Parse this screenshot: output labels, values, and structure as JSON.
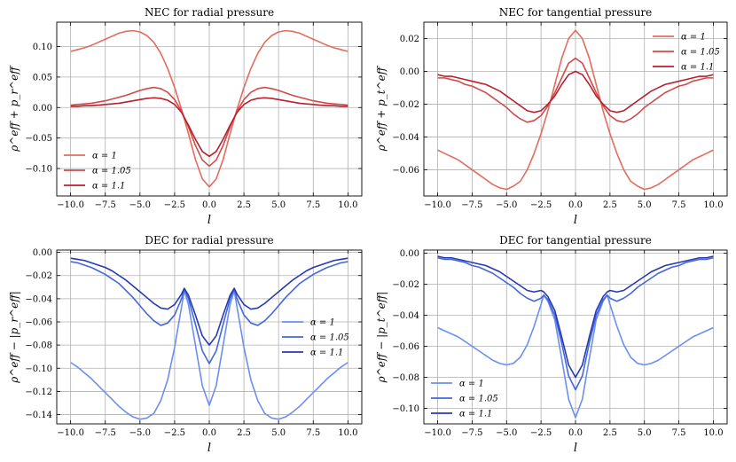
{
  "figure": {
    "charts": [
      {
        "id": "nec-radial",
        "title": "NEC for radial pressure",
        "xlabel": "l",
        "ylabel": "ρ^eff + p_r^eff",
        "legend_position": "lower-left"
      },
      {
        "id": "nec-tangential",
        "title": "NEC for tangential pressure",
        "xlabel": "l",
        "ylabel": "ρ^eff + p_t^eff",
        "legend_position": "upper-right"
      },
      {
        "id": "dec-radial",
        "title": "DEC for radial pressure",
        "xlabel": "l",
        "ylabel": "ρ^eff − |p_r^eff|",
        "legend_position": "center-right"
      },
      {
        "id": "dec-tangential",
        "title": "DEC for tangential pressure",
        "xlabel": "l",
        "ylabel": "ρ^eff − |p_t^eff|",
        "legend_position": "lower-left"
      }
    ]
  },
  "chart_data": [
    {
      "type": "line",
      "title": "NEC for radial pressure",
      "xlabel": "l",
      "ylabel": "ρ^eff + p_r^eff",
      "xlim": [
        -11,
        11
      ],
      "ylim": [
        -0.145,
        0.14
      ],
      "xticks": [
        -10,
        -7.5,
        -5,
        -2.5,
        0,
        2.5,
        5,
        7.5,
        10
      ],
      "xtick_labels": [
        "−10.0",
        "−7.5",
        "−5.0",
        "−2.5",
        "0.0",
        "2.5",
        "5.0",
        "7.5",
        "10.0"
      ],
      "yticks": [
        -0.1,
        -0.05,
        0.0,
        0.05,
        0.1
      ],
      "ytick_labels": [
        "−0.10",
        "−0.05",
        "0.00",
        "0.05",
        "0.10"
      ],
      "grid": true,
      "legend": "lower-left",
      "x": [
        0,
        0.5,
        1,
        1.5,
        2,
        2.5,
        3,
        3.5,
        4,
        4.5,
        5,
        5.5,
        6,
        6.5,
        7,
        7.5,
        8,
        8.5,
        9,
        9.5,
        10
      ],
      "symmetric_x": true,
      "series": [
        {
          "name": "α = 1",
          "color": "#e36c5d",
          "values": [
            -0.13,
            -0.117,
            -0.085,
            -0.043,
            -0.003,
            0.033,
            0.064,
            0.089,
            0.107,
            0.118,
            0.124,
            0.126,
            0.125,
            0.122,
            0.117,
            0.112,
            0.107,
            0.102,
            0.098,
            0.095,
            0.092
          ]
        },
        {
          "name": "α = 1.05",
          "color": "#cf4a4a",
          "values": [
            -0.096,
            -0.086,
            -0.062,
            -0.032,
            -0.006,
            0.013,
            0.025,
            0.031,
            0.033,
            0.031,
            0.028,
            0.024,
            0.02,
            0.017,
            0.014,
            0.011,
            0.009,
            0.007,
            0.006,
            0.005,
            0.004
          ]
        },
        {
          "name": "α = 1.1",
          "color": "#b8202e",
          "values": [
            -0.08,
            -0.072,
            -0.052,
            -0.029,
            -0.008,
            0.005,
            0.012,
            0.015,
            0.016,
            0.015,
            0.013,
            0.011,
            0.009,
            0.007,
            0.006,
            0.005,
            0.004,
            0.003,
            0.003,
            0.002,
            0.002
          ]
        }
      ]
    },
    {
      "type": "line",
      "title": "NEC for tangential pressure",
      "xlabel": "l",
      "ylabel": "ρ^eff + p_t^eff",
      "xlim": [
        -11,
        11
      ],
      "ylim": [
        -0.076,
        0.03
      ],
      "xticks": [
        -10,
        -7.5,
        -5,
        -2.5,
        0,
        2.5,
        5,
        7.5,
        10
      ],
      "xtick_labels": [
        "−10.0",
        "−7.5",
        "−5.0",
        "−2.5",
        "0.0",
        "2.5",
        "5.0",
        "7.5",
        "10.0"
      ],
      "yticks": [
        -0.06,
        -0.04,
        -0.02,
        0.0,
        0.02
      ],
      "ytick_labels": [
        "−0.06",
        "−0.04",
        "−0.02",
        "0.00",
        "0.02"
      ],
      "grid": true,
      "legend": "upper-right",
      "x": [
        0,
        0.5,
        1,
        1.5,
        2,
        2.5,
        3,
        3.5,
        4,
        4.5,
        5,
        5.5,
        6,
        6.5,
        7,
        7.5,
        8,
        8.5,
        9,
        9.5,
        10
      ],
      "symmetric_x": true,
      "series": [
        {
          "name": "α = 1",
          "color": "#e36c5d",
          "values": [
            0.025,
            0.02,
            0.008,
            -0.008,
            -0.024,
            -0.038,
            -0.05,
            -0.06,
            -0.067,
            -0.07,
            -0.072,
            -0.071,
            -0.069,
            -0.066,
            -0.063,
            -0.06,
            -0.057,
            -0.054,
            -0.052,
            -0.05,
            -0.048
          ]
        },
        {
          "name": "α = 1.05",
          "color": "#cf4a4a",
          "values": [
            0.008,
            0.005,
            -0.004,
            -0.013,
            -0.021,
            -0.027,
            -0.03,
            -0.031,
            -0.029,
            -0.026,
            -0.022,
            -0.019,
            -0.016,
            -0.013,
            -0.011,
            -0.009,
            -0.008,
            -0.006,
            -0.005,
            -0.004,
            -0.004
          ]
        },
        {
          "name": "α = 1.1",
          "color": "#b8202e",
          "values": [
            0.0,
            -0.002,
            -0.008,
            -0.015,
            -0.02,
            -0.024,
            -0.025,
            -0.024,
            -0.021,
            -0.018,
            -0.015,
            -0.012,
            -0.01,
            -0.008,
            -0.007,
            -0.006,
            -0.005,
            -0.004,
            -0.003,
            -0.003,
            -0.002
          ]
        }
      ]
    },
    {
      "type": "line",
      "title": "DEC for radial pressure",
      "xlabel": "l",
      "ylabel": "ρ^eff − |p_r^eff|",
      "xlim": [
        -11,
        11
      ],
      "ylim": [
        -0.148,
        0.002
      ],
      "xticks": [
        -10,
        -7.5,
        -5,
        -2.5,
        0,
        2.5,
        5,
        7.5,
        10
      ],
      "xtick_labels": [
        "−10.0",
        "−7.5",
        "−5.0",
        "−2.5",
        "0.0",
        "2.5",
        "5.0",
        "7.5",
        "10.0"
      ],
      "yticks": [
        0.0,
        -0.02,
        -0.04,
        -0.06,
        -0.08,
        -0.1,
        -0.12,
        -0.14
      ],
      "ytick_labels": [
        "0.00",
        "−0.02",
        "−0.04",
        "−0.06",
        "−0.08",
        "−0.10",
        "−0.12",
        "−0.14"
      ],
      "grid": true,
      "legend": "center-right",
      "x": [
        0,
        0.5,
        1,
        1.5,
        1.8,
        2,
        2.5,
        3,
        3.5,
        4,
        4.5,
        5,
        5.5,
        6,
        6.5,
        7,
        7.5,
        8,
        8.5,
        9,
        9.5,
        10
      ],
      "symmetric_x": true,
      "series": [
        {
          "name": "α = 1",
          "color": "#6b8ff0",
          "values": [
            -0.132,
            -0.115,
            -0.08,
            -0.045,
            -0.033,
            -0.047,
            -0.082,
            -0.11,
            -0.128,
            -0.139,
            -0.143,
            -0.144,
            -0.142,
            -0.138,
            -0.133,
            -0.127,
            -0.121,
            -0.115,
            -0.109,
            -0.104,
            -0.099,
            -0.095
          ]
        },
        {
          "name": "α = 1.05",
          "color": "#4566dd",
          "values": [
            -0.096,
            -0.085,
            -0.062,
            -0.04,
            -0.032,
            -0.04,
            -0.054,
            -0.061,
            -0.063,
            -0.059,
            -0.053,
            -0.046,
            -0.039,
            -0.033,
            -0.027,
            -0.023,
            -0.019,
            -0.016,
            -0.013,
            -0.011,
            -0.009,
            -0.008
          ]
        },
        {
          "name": "α = 1.1",
          "color": "#2639b5",
          "values": [
            -0.08,
            -0.072,
            -0.054,
            -0.037,
            -0.031,
            -0.036,
            -0.045,
            -0.049,
            -0.048,
            -0.044,
            -0.039,
            -0.034,
            -0.029,
            -0.024,
            -0.02,
            -0.016,
            -0.013,
            -0.011,
            -0.009,
            -0.007,
            -0.006,
            -0.005
          ]
        }
      ]
    },
    {
      "type": "line",
      "title": "DEC for tangential pressure",
      "xlabel": "l",
      "ylabel": "ρ^eff − |p_t^eff|",
      "xlim": [
        -11,
        11
      ],
      "ylim": [
        -0.11,
        0.002
      ],
      "xticks": [
        -10,
        -7.5,
        -5,
        -2.5,
        0,
        2.5,
        5,
        7.5,
        10
      ],
      "xtick_labels": [
        "−10.0",
        "−7.5",
        "−5.0",
        "−2.5",
        "0.0",
        "2.5",
        "5.0",
        "7.5",
        "10.0"
      ],
      "yticks": [
        0.0,
        -0.02,
        -0.04,
        -0.06,
        -0.08,
        -0.1
      ],
      "ytick_labels": [
        "0.00",
        "−0.02",
        "−0.04",
        "−0.06",
        "−0.08",
        "−0.10"
      ],
      "grid": true,
      "legend": "lower-left",
      "x": [
        0,
        0.5,
        1,
        1.5,
        2,
        2.3,
        2.5,
        3,
        3.5,
        4,
        4.5,
        5,
        5.5,
        6,
        6.5,
        7,
        7.5,
        8,
        8.5,
        9,
        9.5,
        10
      ],
      "symmetric_x": true,
      "series": [
        {
          "name": "α = 1",
          "color": "#6b8ff0",
          "values": [
            -0.106,
            -0.094,
            -0.068,
            -0.043,
            -0.031,
            -0.027,
            -0.033,
            -0.047,
            -0.059,
            -0.067,
            -0.071,
            -0.072,
            -0.071,
            -0.069,
            -0.066,
            -0.063,
            -0.06,
            -0.057,
            -0.054,
            -0.052,
            -0.05,
            -0.048
          ]
        },
        {
          "name": "α = 1.05",
          "color": "#4566dd",
          "values": [
            -0.088,
            -0.079,
            -0.058,
            -0.04,
            -0.03,
            -0.027,
            -0.029,
            -0.031,
            -0.029,
            -0.026,
            -0.022,
            -0.019,
            -0.016,
            -0.013,
            -0.011,
            -0.009,
            -0.008,
            -0.006,
            -0.005,
            -0.004,
            -0.004,
            -0.003
          ]
        },
        {
          "name": "α = 1.1",
          "color": "#2639b5",
          "values": [
            -0.08,
            -0.072,
            -0.054,
            -0.037,
            -0.028,
            -0.025,
            -0.024,
            -0.025,
            -0.024,
            -0.021,
            -0.018,
            -0.015,
            -0.012,
            -0.01,
            -0.008,
            -0.007,
            -0.006,
            -0.005,
            -0.004,
            -0.003,
            -0.003,
            -0.002
          ]
        }
      ]
    }
  ]
}
